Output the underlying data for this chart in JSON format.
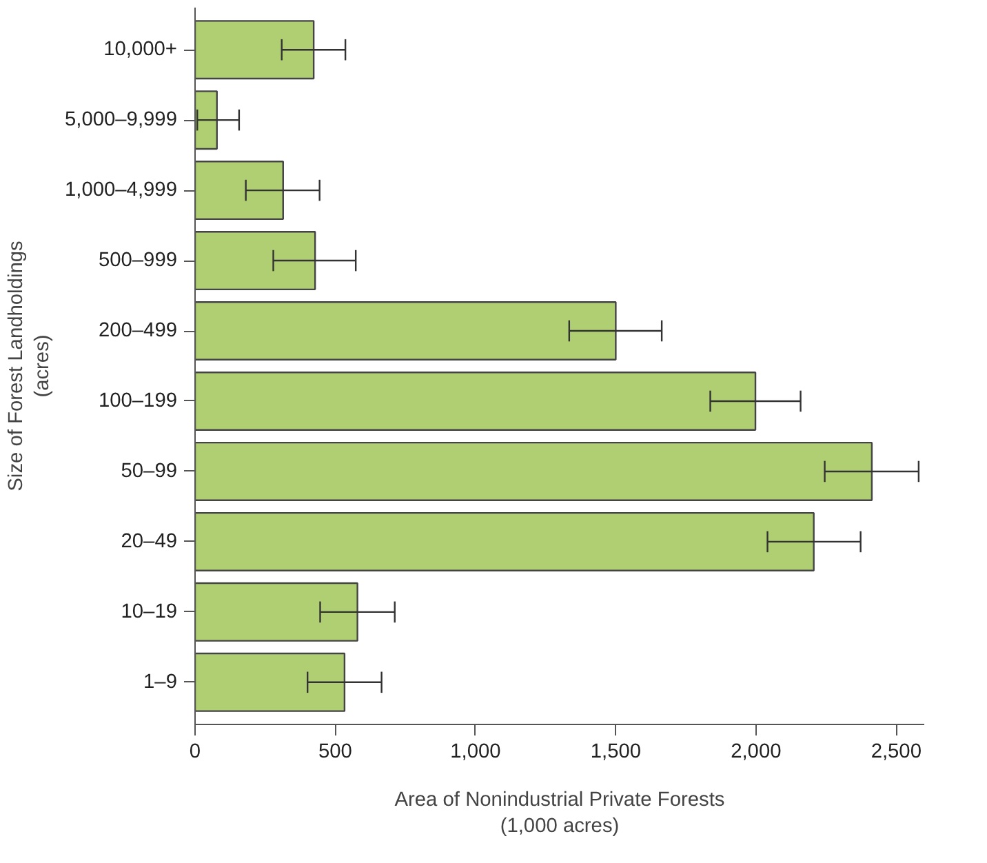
{
  "chart_data": {
    "type": "bar",
    "orientation": "horizontal",
    "xlabel": "Area of Nonindustrial Private Forests\n(1,000 acres)",
    "ylabel": "Size of Forest Landholdings\n(acres)",
    "categories": [
      "10,000+",
      "5,000–9,999",
      "1,000–4,999",
      "500–999",
      "200–499",
      "100–199",
      "50–99",
      "20–49",
      "10–19",
      "1–9"
    ],
    "values": [
      423,
      78,
      314,
      428,
      1500,
      1998,
      2413,
      2206,
      579,
      533
    ],
    "errors": [
      [
        309,
        536
      ],
      [
        8,
        157
      ],
      [
        181,
        444
      ],
      [
        279,
        573
      ],
      [
        1334,
        1664
      ],
      [
        1837,
        2159
      ],
      [
        2245,
        2580
      ],
      [
        2041,
        2373
      ],
      [
        446,
        712
      ],
      [
        401,
        665
      ]
    ],
    "color": "#b0cf73",
    "xlim": [
      0,
      2600
    ],
    "xticks": [
      0,
      {
        "value": 500,
        "label": "500"
      },
      {
        "value": 1000,
        "label": "1,000"
      },
      {
        "value": 1500,
        "label": "1,500"
      },
      {
        "value": 2000,
        "label": "2,000"
      },
      {
        "value": 2500,
        "label": "2,500"
      }
    ],
    "grid": false
  }
}
